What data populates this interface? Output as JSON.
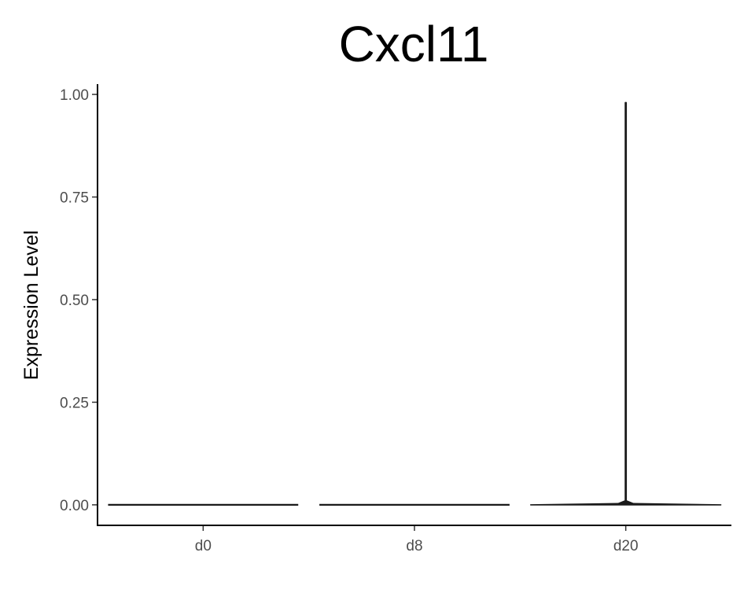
{
  "chart_data": {
    "type": "violin",
    "title": "Cxcl11",
    "xlabel": "",
    "ylabel": "Expression Level",
    "categories": [
      "d0",
      "d8",
      "d20"
    ],
    "ylim": [
      -0.05,
      1.025
    ],
    "yticks": [
      0,
      0.25,
      0.5,
      0.75,
      1.0
    ],
    "ytick_labels": [
      "0.00",
      "0.25",
      "0.50",
      "0.75",
      "1.00"
    ],
    "grid": false,
    "legend": "none",
    "colors": {
      "violin_stroke": "#1a1a1a",
      "axis": "#000000",
      "tick_label": "#4d4d4d"
    },
    "series": [
      {
        "category": "d0",
        "min": 0,
        "max": 0,
        "density": [
          [
            0,
            1.0
          ],
          [
            0,
            1.0
          ]
        ]
      },
      {
        "category": "d8",
        "min": 0,
        "max": 0,
        "density": [
          [
            0,
            1.0
          ],
          [
            0,
            1.0
          ]
        ]
      },
      {
        "category": "d20",
        "min": 0,
        "max": 0.98,
        "density": [
          [
            0,
            1.0
          ],
          [
            0.003,
            0.08
          ],
          [
            0.01,
            0.005
          ],
          [
            0.98,
            0.005
          ]
        ]
      }
    ]
  }
}
